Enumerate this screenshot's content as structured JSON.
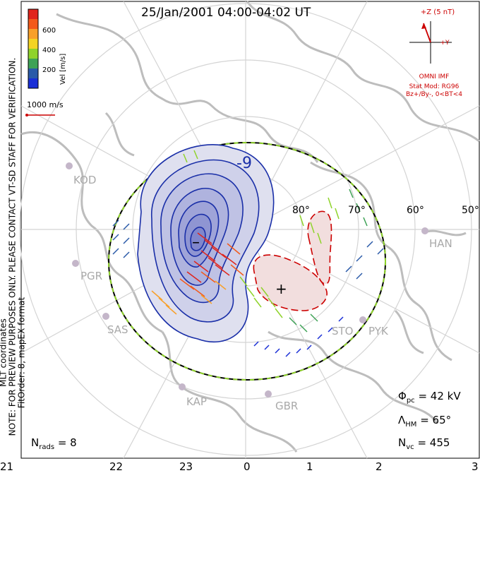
{
  "title": "25/Jan/2001 04:00-04:02 UT",
  "side_note": {
    "line1": "MLT coordinates",
    "line2": "NOTE: FOR PREVIEW PURPOSES ONLY. PLEASE CONTACT VT-SD STAFF FOR VERIFICATION.",
    "line3": "FitOrder: 8, mapEX format"
  },
  "colorbar": {
    "label": "Vel [m/s]",
    "ticks": [
      "600",
      "400",
      "200"
    ],
    "colors": [
      "#e0251c",
      "#f35a1b",
      "#f8a02a",
      "#f4d424",
      "#8fd32b",
      "#3ea256",
      "#2a5aa8",
      "#1a2fd6"
    ]
  },
  "reference_vector": {
    "label": "1000 m/s",
    "color": "#cc0000"
  },
  "imf": {
    "z_label": "+Z (5 nT)",
    "y_label": "+Y",
    "source": "OMNI IMF",
    "model_line1": "Stat Mod: RG96",
    "model_line2": "Bz+/By-, 0<BT<4",
    "color": "#cc0000"
  },
  "contours": {
    "neg_label": "-9",
    "pos_label": "+",
    "neg_marker": "–"
  },
  "latitude_labels": [
    "80°",
    "70°",
    "60°",
    "50°"
  ],
  "stations": [
    "KOD",
    "PGR",
    "SAS",
    "KAP",
    "GBR",
    "STO",
    "PYK",
    "HAN"
  ],
  "stats": {
    "phi_pc_symbol": "Φ",
    "phi_pc_sub": "pc",
    "phi_pc_value": "= 42 kV",
    "lambda_symbol": "Λ",
    "lambda_sub": "HM",
    "lambda_value": "= 65°",
    "nvc_symbol": "N",
    "nvc_sub": "vc",
    "nvc_value": "= 455",
    "nrads_symbol": "N",
    "nrads_sub": "rads",
    "nrads_value": "= 8"
  },
  "mlt_axis": [
    "21",
    "22",
    "23",
    "0",
    "1",
    "2",
    "3"
  ]
}
